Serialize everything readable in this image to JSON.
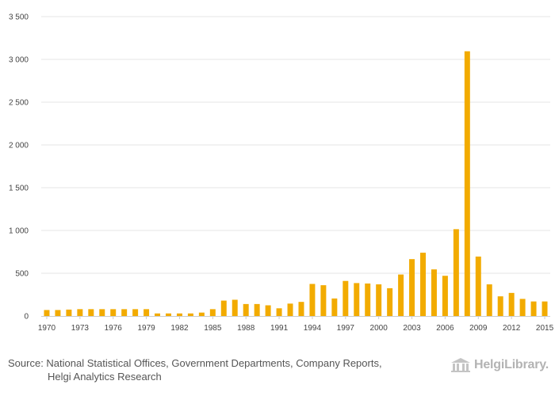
{
  "chart_data": {
    "type": "bar",
    "title": "",
    "xlabel": "",
    "ylabel": "",
    "ylim": [
      0,
      3500
    ],
    "y_ticks": [
      0,
      500,
      1000,
      1500,
      2000,
      2500,
      3000,
      3500
    ],
    "y_tick_labels": [
      "0",
      "500",
      "1 000",
      "1 500",
      "2 000",
      "2 500",
      "3 000",
      "3 500"
    ],
    "x_tick_labels": [
      "1970",
      "1973",
      "1976",
      "1979",
      "1982",
      "1985",
      "1988",
      "1991",
      "1994",
      "1997",
      "2000",
      "2003",
      "2006",
      "2009",
      "2012",
      "2015"
    ],
    "bar_color": "#f2ab00",
    "grid": true,
    "categories": [
      "1970",
      "1971",
      "1972",
      "1973",
      "1974",
      "1975",
      "1976",
      "1977",
      "1978",
      "1979",
      "1980",
      "1981",
      "1982",
      "1983",
      "1984",
      "1985",
      "1986",
      "1987",
      "1988",
      "1989",
      "1990",
      "1991",
      "1992",
      "1993",
      "1994",
      "1995",
      "1996",
      "1997",
      "1998",
      "1999",
      "2000",
      "2001",
      "2002",
      "2003",
      "2004",
      "2005",
      "2006",
      "2007",
      "2008",
      "2009",
      "2010",
      "2011",
      "2012",
      "2013",
      "2014",
      "2015"
    ],
    "values": [
      70,
      70,
      75,
      80,
      80,
      80,
      80,
      80,
      80,
      80,
      30,
      30,
      30,
      30,
      40,
      80,
      180,
      190,
      140,
      140,
      125,
      90,
      145,
      165,
      375,
      360,
      205,
      410,
      385,
      380,
      370,
      325,
      485,
      665,
      740,
      545,
      470,
      1015,
      3095,
      695,
      370,
      230,
      270,
      200,
      170,
      170
    ]
  },
  "footer": {
    "source_line1": "Source: National Statistical Offices, Government Departments, Company Reports,",
    "source_line2": "Helgi Analytics Research",
    "brand": "HelgiLibrary."
  }
}
